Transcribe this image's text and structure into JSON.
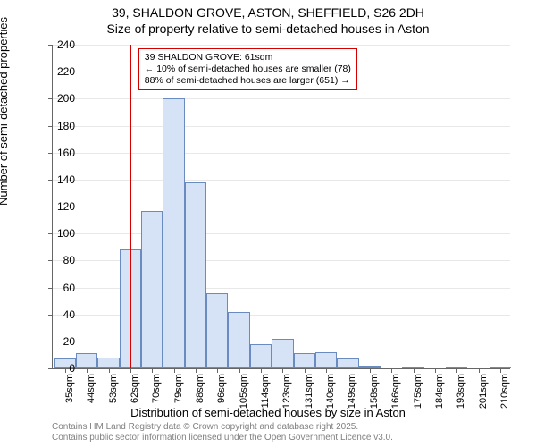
{
  "title_line1": "39, SHALDON GROVE, ASTON, SHEFFIELD, S26 2DH",
  "title_line2": "Size of property relative to semi-detached houses in Aston",
  "ylabel": "Number of semi-detached properties",
  "xlabel": "Distribution of semi-detached houses by size in Aston",
  "chart": {
    "type": "histogram",
    "ylim": [
      0,
      240
    ],
    "ytick_step": 20,
    "xlim": [
      30,
      215
    ],
    "background_color": "#ffffff",
    "grid_color": "#e8e8e8",
    "bar_fill": "#d6e2f5",
    "bar_border": "#6a8bc0",
    "marker_color": "#d40000",
    "marker_x": 61,
    "bin_width": 8.8,
    "bins": [
      {
        "start": 30.6,
        "value": 7,
        "label": "35sqm"
      },
      {
        "start": 39.4,
        "value": 11,
        "label": "44sqm"
      },
      {
        "start": 48.2,
        "value": 8,
        "label": "53sqm"
      },
      {
        "start": 57.0,
        "value": 88,
        "label": "62sqm"
      },
      {
        "start": 65.8,
        "value": 117,
        "label": "70sqm"
      },
      {
        "start": 74.6,
        "value": 200,
        "label": "79sqm"
      },
      {
        "start": 83.4,
        "value": 138,
        "label": "88sqm"
      },
      {
        "start": 92.2,
        "value": 56,
        "label": "96sqm"
      },
      {
        "start": 101.0,
        "value": 42,
        "label": "105sqm"
      },
      {
        "start": 109.8,
        "value": 18,
        "label": "114sqm"
      },
      {
        "start": 118.6,
        "value": 22,
        "label": "123sqm"
      },
      {
        "start": 127.4,
        "value": 11,
        "label": "131sqm"
      },
      {
        "start": 136.2,
        "value": 12,
        "label": "140sqm"
      },
      {
        "start": 145.0,
        "value": 7,
        "label": "149sqm"
      },
      {
        "start": 153.8,
        "value": 2,
        "label": "158sqm"
      },
      {
        "start": 162.6,
        "value": 0,
        "label": "166sqm"
      },
      {
        "start": 171.4,
        "value": 1,
        "label": "175sqm"
      },
      {
        "start": 180.2,
        "value": 0,
        "label": "184sqm"
      },
      {
        "start": 189.0,
        "value": 1,
        "label": "193sqm"
      },
      {
        "start": 197.8,
        "value": 0,
        "label": "201sqm"
      },
      {
        "start": 206.6,
        "value": 1,
        "label": "210sqm"
      }
    ]
  },
  "annotation": {
    "line1": "39 SHALDON GROVE: 61sqm",
    "line2": "← 10% of semi-detached houses are smaller (78)",
    "line3": "88% of semi-detached houses are larger (651) →",
    "border_color": "#d40000"
  },
  "footer_line1": "Contains HM Land Registry data © Crown copyright and database right 2025.",
  "footer_line2": "Contains public sector information licensed under the Open Government Licence v3.0."
}
